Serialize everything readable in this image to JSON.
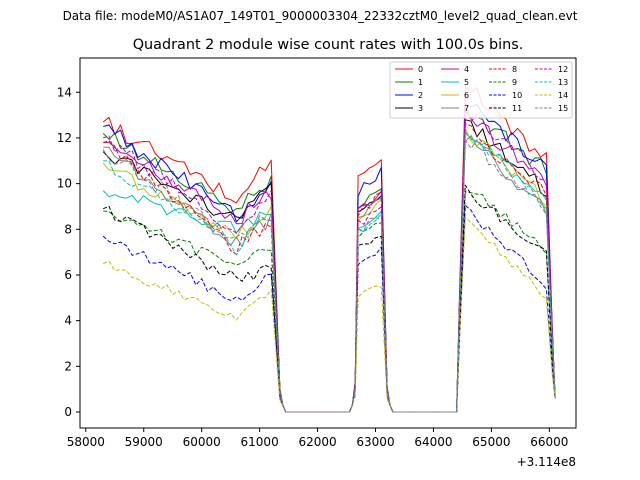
{
  "chart_data": {
    "type": "line",
    "suptitle": "Data file: modeM0/AS1A07_149T01_9000003304_22332cztM0_level2_quad_clean.evt",
    "title": "Quadrant 2 module wise count rates with 100.0s bins.",
    "xlabel": "",
    "ylabel": "",
    "x_offset_label": "+3.114e8",
    "xlim": [
      57900,
      66460
    ],
    "ylim": [
      -0.7,
      15.5
    ],
    "x_ticks": [
      58000,
      59000,
      60000,
      61000,
      62000,
      63000,
      64000,
      65000,
      66000
    ],
    "y_ticks": [
      0,
      2,
      4,
      6,
      8,
      10,
      12,
      14
    ],
    "legend_position": "upper-right",
    "legend_columns": 4,
    "segments": [
      {
        "start": 58300,
        "end": 61250
      },
      {
        "start": 62650,
        "end": 63150
      },
      {
        "start": 64450,
        "end": 66000
      }
    ],
    "series": [
      {
        "name": "0",
        "color": "#ff0000",
        "dash": "solid",
        "levels": [
          12.7,
          9.3,
          11.3,
          0.0,
          11.2,
          0.0,
          14.6,
          10.9
        ]
      },
      {
        "name": "1",
        "color": "#008000",
        "dash": "solid",
        "levels": [
          12.2,
          8.8,
          10.2,
          0.0,
          9.8,
          0.0,
          13.6,
          10.5
        ]
      },
      {
        "name": "2",
        "color": "#0000ff",
        "dash": "solid",
        "levels": [
          12.5,
          8.6,
          10.2,
          0.0,
          10.6,
          0.0,
          14.0,
          10.4
        ]
      },
      {
        "name": "3",
        "color": "#000000",
        "dash": "solid",
        "levels": [
          11.4,
          8.3,
          10.0,
          0.0,
          9.7,
          0.0,
          13.0,
          9.6
        ]
      },
      {
        "name": "4",
        "color": "#bf00bf",
        "dash": "solid",
        "levels": [
          11.8,
          8.4,
          9.7,
          0.0,
          9.6,
          0.0,
          13.2,
          10.1
        ]
      },
      {
        "name": "5",
        "color": "#00bfbf",
        "dash": "solid",
        "levels": [
          9.7,
          8.0,
          9.0,
          0.0,
          8.8,
          0.0,
          12.4,
          9.4
        ]
      },
      {
        "name": "6",
        "color": "#bfbf00",
        "dash": "solid",
        "levels": [
          10.9,
          7.6,
          9.0,
          0.0,
          9.3,
          0.0,
          12.6,
          9.2
        ]
      },
      {
        "name": "7",
        "color": "#808080",
        "dash": "solid",
        "levels": [
          11.6,
          7.4,
          8.5,
          0.0,
          9.4,
          0.0,
          12.2,
          8.8
        ]
      },
      {
        "name": "8",
        "color": "#ff0000",
        "dash": "dashed",
        "levels": [
          11.8,
          7.2,
          8.4,
          0.0,
          9.6,
          0.0,
          12.6,
          9.5
        ]
      },
      {
        "name": "9",
        "color": "#008000",
        "dash": "dashed",
        "levels": [
          8.8,
          6.4,
          7.4,
          0.0,
          8.4,
          0.0,
          10.1,
          7.0
        ]
      },
      {
        "name": "10",
        "color": "#0000ff",
        "dash": "dashed",
        "levels": [
          7.7,
          4.9,
          6.2,
          0.0,
          7.2,
          0.0,
          9.2,
          5.4
        ]
      },
      {
        "name": "11",
        "color": "#000000",
        "dash": "dashed",
        "levels": [
          8.9,
          5.8,
          6.3,
          0.0,
          7.9,
          0.0,
          10.0,
          6.8
        ]
      },
      {
        "name": "12",
        "color": "#bf00bf",
        "dash": "dashed",
        "levels": [
          12.0,
          8.0,
          9.6,
          0.0,
          9.0,
          0.0,
          13.5,
          10.2
        ]
      },
      {
        "name": "13",
        "color": "#00bfbf",
        "dash": "dashed",
        "levels": [
          11.0,
          7.2,
          8.7,
          0.0,
          8.6,
          0.0,
          12.6,
          9.0
        ]
      },
      {
        "name": "14",
        "color": "#bfbf00",
        "dash": "dashed",
        "levels": [
          6.5,
          4.2,
          5.3,
          0.0,
          5.6,
          0.0,
          8.9,
          4.8
        ]
      },
      {
        "name": "15",
        "color": "#808080",
        "dash": "dashed",
        "levels": [
          11.5,
          7.5,
          8.8,
          0.0,
          8.7,
          0.0,
          12.3,
          8.8
        ]
      }
    ]
  }
}
